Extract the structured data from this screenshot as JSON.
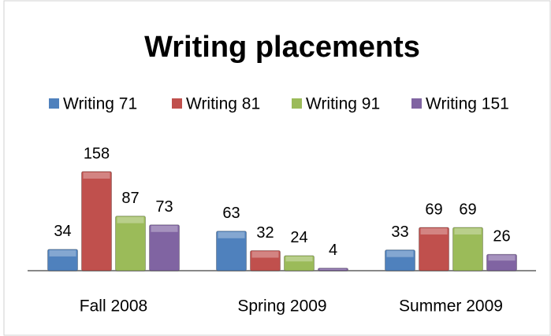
{
  "chart_data": {
    "type": "bar",
    "title": "Writing placements",
    "categories": [
      "Fall 2008",
      "Spring 2009",
      "Summer 2009"
    ],
    "series": [
      {
        "name": "Writing 71",
        "color": "#4f81bd",
        "values": [
          34,
          63,
          33
        ]
      },
      {
        "name": "Writing 81",
        "color": "#c0504d",
        "values": [
          158,
          32,
          69
        ]
      },
      {
        "name": "Writing 91",
        "color": "#9bbb59",
        "values": [
          87,
          24,
          69
        ]
      },
      {
        "name": "Writing 151",
        "color": "#8064a2",
        "values": [
          73,
          4,
          26
        ]
      }
    ],
    "legend": "top"
  }
}
